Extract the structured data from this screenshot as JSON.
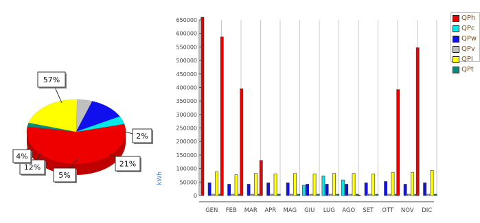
{
  "chart_data": [
    {
      "type": "pie",
      "labels": [
        "57%",
        "2%",
        "21%",
        "5%",
        "12%",
        "4%"
      ],
      "values": [
        57,
        2,
        21,
        5,
        12,
        4
      ],
      "colors": [
        "#ee0000",
        "#0a8a7a",
        "#ffff00",
        "#c0c0c0",
        "#1010ee",
        "#00e8e8"
      ]
    },
    {
      "type": "bar",
      "ylabel": "kWh",
      "categories": [
        "GEN",
        "FEB",
        "MAR",
        "APR",
        "MAG",
        "GIU",
        "LUG",
        "AGO",
        "SET",
        "OTT",
        "NOV",
        "DIC"
      ],
      "ylim": [
        0,
        650000
      ],
      "yticks": [
        "650000",
        "600000",
        "550000",
        "500000",
        "450000",
        "400000",
        "350000",
        "300000",
        "250000",
        "200000",
        "150000",
        "100000",
        "50000",
        "0"
      ],
      "grid": true,
      "legend_position": "top-right",
      "series": [
        {
          "name": "QPh",
          "color": "#ee0000",
          "values": [
            660000,
            587000,
            395000,
            130000,
            0,
            0,
            0,
            0,
            2000,
            0,
            392000,
            547000
          ]
        },
        {
          "name": "QPc",
          "color": "#00e8e8",
          "values": [
            0,
            0,
            0,
            0,
            0,
            38000,
            73000,
            58000,
            0,
            0,
            0,
            0
          ]
        },
        {
          "name": "QPw",
          "color": "#1010ee",
          "values": [
            47000,
            42000,
            42000,
            47000,
            47000,
            42000,
            42000,
            42000,
            47000,
            52000,
            42000,
            47000
          ]
        },
        {
          "name": "QPv",
          "color": "#c0c0c0",
          "values": [
            5000,
            5000,
            5000,
            5000,
            5000,
            5000,
            5000,
            5000,
            5000,
            5000,
            5000,
            5000
          ]
        },
        {
          "name": "QPl",
          "color": "#ffff00",
          "values": [
            88000,
            77000,
            82000,
            80000,
            82000,
            80000,
            82000,
            82000,
            80000,
            86000,
            86000,
            93000
          ]
        },
        {
          "name": "QPt",
          "color": "#0a8a7a",
          "values": [
            5000,
            5000,
            5000,
            5000,
            5000,
            5000,
            5000,
            5000,
            5000,
            5000,
            5000,
            5000
          ]
        }
      ]
    }
  ]
}
